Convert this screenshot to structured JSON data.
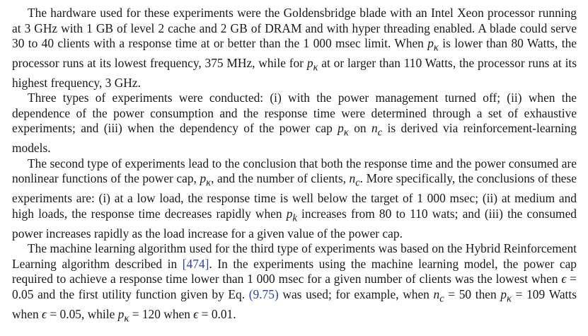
{
  "paragraphs": [
    {
      "segments": [
        "The hardware used for these experiments were the Goldensbridge blade with an Intel Xeon processor running at 3 GHz with 1 GB of level 2 cache and 2 GB of DRAM and with hyper threading enabled. A blade could serve 30 to 40 clients with a response time at or better than the 1 000 msec limit. When ",
        "p",
        "κ",
        " is lower than 80 Watts, the processor runs at its lowest frequency, 375 MHz, while for ",
        "p",
        "κ",
        " at or larger than 110 Watts, the processor runs at its highest frequency, 3 GHz."
      ]
    },
    {
      "segments": [
        "Three types of experiments were conducted: (i) with the power management turned off; (ii) when the dependence of the power consumption and the response time were determined through a set of exhaustive experiments; and (iii) when the dependency of the power cap ",
        "p",
        "κ",
        " on ",
        "n",
        "c",
        " is derived via reinforcement-learning models."
      ]
    },
    {
      "segments": [
        "The second type of experiments lead to the conclusion that both the response time and the power consumed are nonlinear functions of the power cap, ",
        "p",
        "κ",
        ", and the number of clients, ",
        "n",
        "c",
        ". More specifically, the conclusions of these experiments are: (i) at a low load, the response time is well below the target of 1 000 msec; (ii) at medium and high loads, the response time decreases rapidly when ",
        "p",
        "k",
        " increases from 80 to 110 wats; and (iii) the consumed power increases rapidly as the load increase for a given value of the power cap."
      ]
    },
    {
      "segments": [
        "The machine learning algorithm used for the third type of experiments was based on the Hybrid Reinforcement Learning algorithm described in ",
        "[474]",
        ". In the experiments using the machine learning model, the power cap required to achieve a response time lower than 1 000 msec for a given number of clients was the lowest when ",
        "ϵ",
        " = 0.05 and the first utility function given by Eq. ",
        "(9.75)",
        " was used; for example, when ",
        "n",
        "c",
        " = 50 then ",
        "p",
        "κ",
        " = 109 Watts when ",
        "ϵ",
        " = 0.05, while ",
        "p",
        "κ",
        " = 120 when ",
        "ϵ",
        " = 0.01."
      ]
    }
  ],
  "colors": {
    "text": "#1a1a1a",
    "citation_link": "#2c3fa8"
  }
}
